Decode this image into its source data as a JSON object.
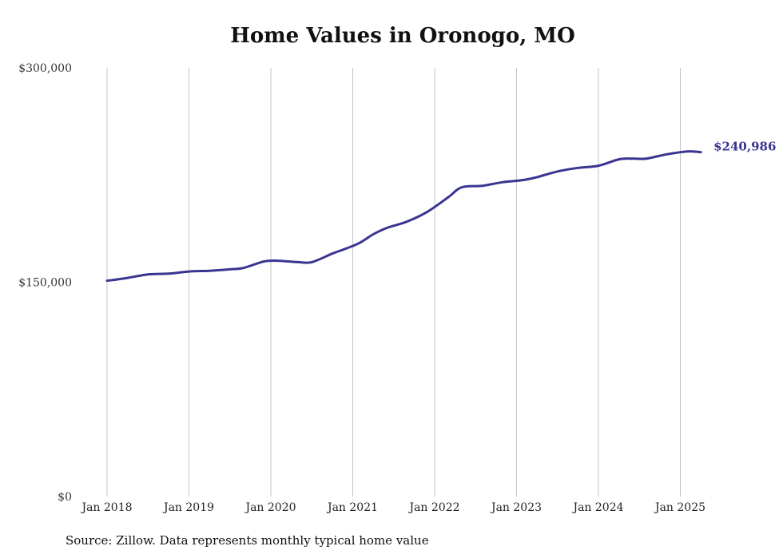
{
  "chart_data": {
    "type": "line",
    "title": "Home Values in Oronogo, MO",
    "xlabel": "",
    "ylabel": "",
    "x_tick_labels": [
      "Jan 2018",
      "Jan 2019",
      "Jan 2020",
      "Jan 2021",
      "Jan 2022",
      "Jan 2023",
      "Jan 2024",
      "Jan 2025"
    ],
    "y_tick_labels": [
      "$0",
      "$150,000",
      "$300,000"
    ],
    "y_ticks": [
      0,
      150000,
      300000
    ],
    "ylim": [
      0,
      300000
    ],
    "xlim": [
      "2018-01",
      "2025-04"
    ],
    "grid": "vertical",
    "line_color": "#3a3591",
    "end_label": "$240,986",
    "series": [
      {
        "x": [
          "2018-01",
          "2018-04",
          "2018-07",
          "2018-10",
          "2019-01",
          "2019-04",
          "2019-07",
          "2019-09",
          "2019-12",
          "2020-02",
          "2020-05",
          "2020-07",
          "2020-10",
          "2020-12",
          "2021-02",
          "2021-04",
          "2021-06",
          "2021-09",
          "2021-12",
          "2022-03",
          "2022-05",
          "2022-08",
          "2022-11",
          "2023-02",
          "2023-04",
          "2023-07",
          "2023-10",
          "2024-01",
          "2024-04",
          "2024-06",
          "2024-08",
          "2024-11",
          "2025-02",
          "2025-04"
        ],
        "values": [
          151000,
          153000,
          155500,
          156000,
          157500,
          158000,
          159000,
          160000,
          164500,
          165000,
          164000,
          164000,
          170000,
          173500,
          177500,
          183500,
          188000,
          192500,
          199500,
          209500,
          216500,
          217500,
          220000,
          221500,
          223500,
          227500,
          230000,
          231500,
          236000,
          236500,
          236500,
          239500,
          241500,
          240986
        ]
      }
    ]
  },
  "source_note": "Source: Zillow. Data represents monthly typical home value"
}
